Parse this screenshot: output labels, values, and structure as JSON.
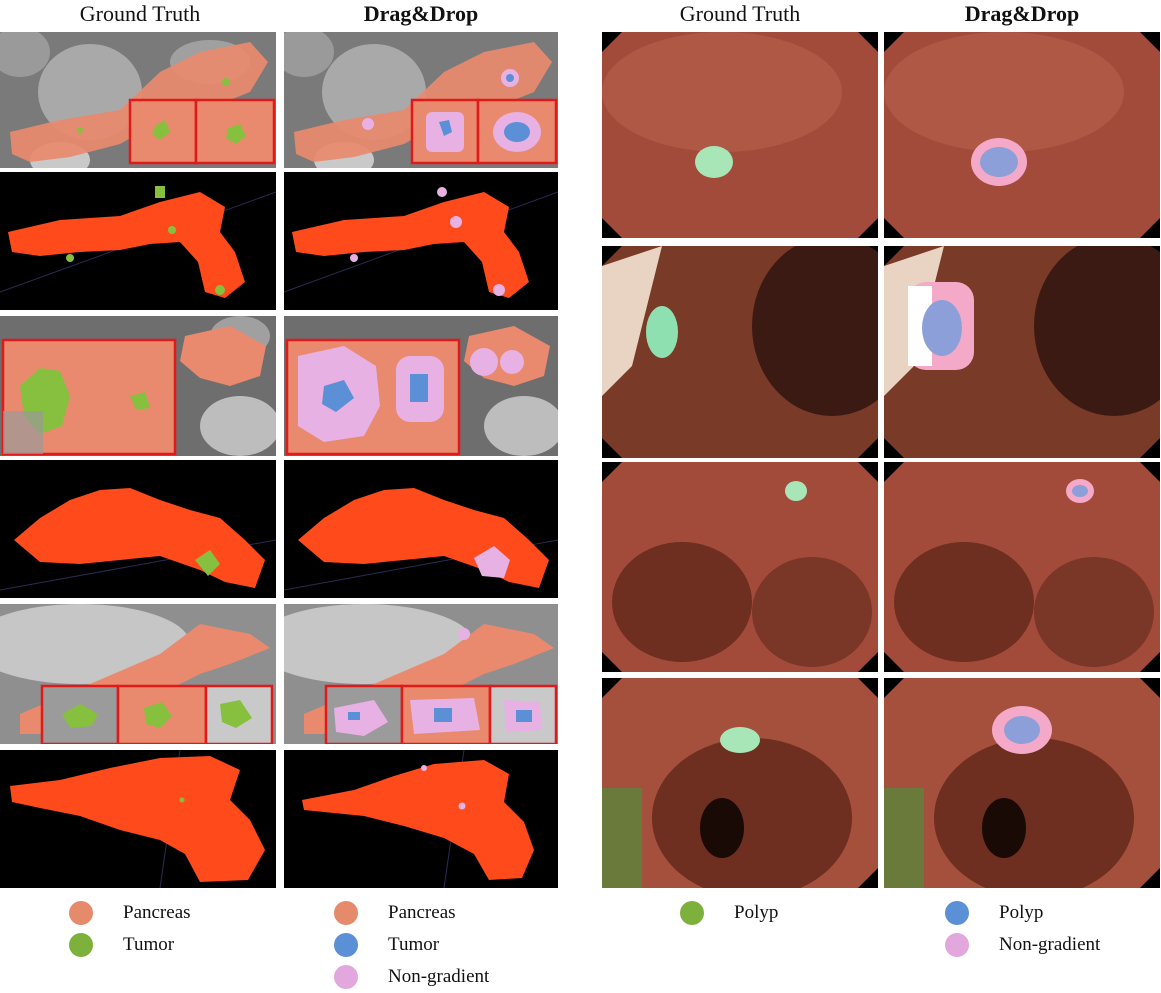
{
  "headers": {
    "left_ground_truth": "Ground Truth",
    "left_method": "Drag&Drop",
    "right_ground_truth": "Ground Truth",
    "right_method": "Drag&Drop"
  },
  "legends": {
    "left_gt": [
      {
        "label": "Pancreas",
        "color": "#e58a6b"
      },
      {
        "label": "Tumor",
        "color": "#7eb03c"
      }
    ],
    "left_method": [
      {
        "label": "Pancreas",
        "color": "#e58a6b"
      },
      {
        "label": "Tumor",
        "color": "#5b8fd6"
      },
      {
        "label": "Non-gradient",
        "color": "#e2a7dc"
      }
    ],
    "right_gt": [
      {
        "label": "Polyp",
        "color": "#7eb03c"
      }
    ],
    "right_method": [
      {
        "label": "Polyp",
        "color": "#5b8fd6"
      },
      {
        "label": "Non-gradient",
        "color": "#e2a7dc"
      }
    ]
  },
  "colors": {
    "pancreas_overlay": "#e98a6e",
    "pancreas_render": "#ff4a1c",
    "tumor_gt": "#86c03e",
    "tumor_pred": "#5b8fd6",
    "non_gradient": "#e7b1e4",
    "inset_border": "#e01919",
    "ct_bg": "#8a8a8a",
    "render_bg": "#000000",
    "endo_tissue": "#9a4a3a",
    "polyp_gt": "#a8e6b8"
  }
}
